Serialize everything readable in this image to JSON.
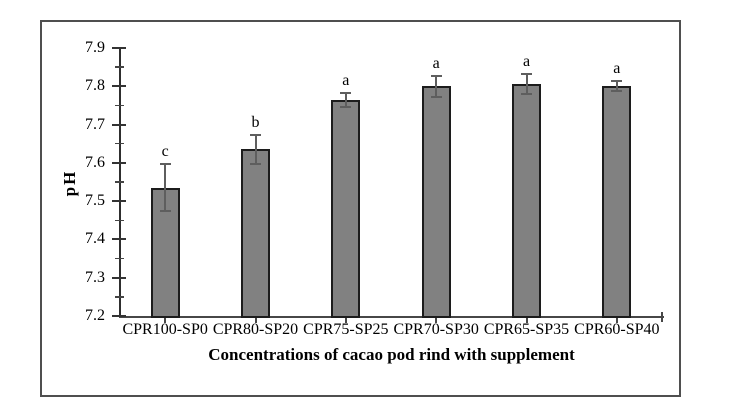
{
  "figure": {
    "border_color": "#4f4f4f",
    "background": "#ffffff"
  },
  "chart_data": {
    "type": "bar",
    "title": "",
    "xlabel": "Concentrations of cacao pod rind with supplement",
    "ylabel": "pH",
    "categories": [
      "CPR100-SP0",
      "CPR80-SP20",
      "CPR75-SP25",
      "CPR70-SP30",
      "CPR65-SP35",
      "CPR60-SP40"
    ],
    "values": [
      7.535,
      7.635,
      7.765,
      7.8,
      7.805,
      7.8
    ],
    "errors": [
      0.062,
      0.038,
      0.018,
      0.027,
      0.026,
      0.013
    ],
    "sig_letters": [
      "c",
      "b",
      "a",
      "a",
      "a",
      "a"
    ],
    "ylim": [
      7.2,
      7.9
    ],
    "ytick_labels": [
      "7.2",
      "7.3",
      "7.4",
      "7.5",
      "7.6",
      "7.7",
      "7.8",
      "7.9"
    ],
    "ytick_step": 0.1,
    "minor_ytick_step": 0.05,
    "grid": false,
    "legend": "none",
    "bar_color": "#818181",
    "bar_border_color": "#1c1c1c",
    "error_bar_color": "#5e5e5e",
    "axis_color": "#2e2e2e",
    "text_color": "#000000"
  }
}
